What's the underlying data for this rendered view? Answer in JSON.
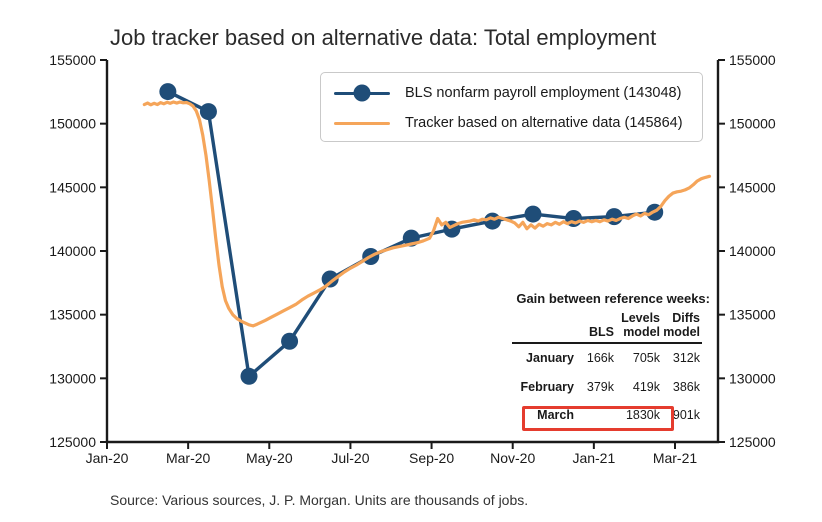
{
  "title": "Job tracker based on alternative data: Total employment",
  "source_note": "Source: Various sources, J. P. Morgan. Units are thousands of jobs.",
  "colors": {
    "bls_series": "#1f4d78",
    "tracker_series": "#f5a55a",
    "axis": "#1a1a1a",
    "highlight_box": "#e53c2e",
    "legend_border": "#c9c9c9"
  },
  "chart_data": {
    "type": "line",
    "title": "Job tracker based on alternative data: Total employment",
    "xlabel": "",
    "ylabel": "",
    "units": "thousands of jobs",
    "grid": false,
    "legend_position": "upper center",
    "x_axis": {
      "unit": "months since Jan-2020 (0 = Jan-20)",
      "range": [
        0,
        15.06
      ],
      "ticks": [
        0,
        2,
        4,
        6,
        8,
        10,
        12,
        14
      ],
      "labels": [
        "Jan-20",
        "Mar-20",
        "May-20",
        "Jul-20",
        "Sep-20",
        "Nov-20",
        "Jan-21",
        "Mar-21"
      ]
    },
    "y_axis": {
      "range": [
        125000,
        155000
      ],
      "ticks": [
        125000,
        130000,
        135000,
        140000,
        145000,
        150000,
        155000
      ],
      "mirrored_right": true
    },
    "series": [
      {
        "name": "BLS nonfarm payroll employment (143048)",
        "color": "#1f4d78",
        "marker": "circle",
        "marker_radius": 8.5,
        "width": 3.4,
        "x": [
          1.5,
          2.5,
          3.5,
          4.5,
          5.5,
          6.5,
          7.5,
          8.5,
          9.5,
          10.5,
          11.5,
          12.5,
          13.5
        ],
        "y": [
          152520,
          150950,
          130160,
          132910,
          137800,
          139570,
          141010,
          141720,
          142350,
          142900,
          142550,
          142700,
          143048
        ]
      },
      {
        "name": "Tracker based on alternative data (145864)",
        "color": "#f5a55a",
        "marker": "none",
        "width": 3.2,
        "x": [
          0.92,
          1.0,
          1.08,
          1.16,
          1.24,
          1.32,
          1.4,
          1.48,
          1.56,
          1.64,
          1.72,
          1.8,
          1.88,
          1.96,
          2.04,
          2.12,
          2.2,
          2.28,
          2.36,
          2.44,
          2.52,
          2.6,
          2.68,
          2.76,
          2.84,
          2.92,
          3.0,
          3.1,
          3.2,
          3.3,
          3.4,
          3.5,
          3.6,
          3.7,
          3.8,
          3.9,
          4.05,
          4.2,
          4.35,
          4.5,
          4.65,
          4.8,
          4.95,
          5.1,
          5.25,
          5.4,
          5.55,
          5.7,
          5.85,
          6.0,
          6.15,
          6.3,
          6.45,
          6.6,
          6.75,
          6.9,
          7.05,
          7.2,
          7.35,
          7.5,
          7.65,
          7.8,
          7.95,
          8.05,
          8.15,
          8.25,
          8.35,
          8.45,
          8.55,
          8.65,
          8.75,
          8.85,
          8.95,
          9.05,
          9.15,
          9.25,
          9.35,
          9.45,
          9.55,
          9.65,
          9.75,
          9.85,
          9.95,
          10.05,
          10.15,
          10.25,
          10.35,
          10.45,
          10.55,
          10.65,
          10.75,
          10.85,
          10.95,
          11.05,
          11.15,
          11.25,
          11.35,
          11.45,
          11.55,
          11.65,
          11.75,
          11.85,
          11.95,
          12.05,
          12.15,
          12.25,
          12.35,
          12.45,
          12.55,
          12.65,
          12.75,
          12.85,
          12.95,
          13.05,
          13.15,
          13.25,
          13.35,
          13.45,
          13.55,
          13.65,
          13.75,
          13.85,
          13.95,
          14.05,
          14.15,
          14.25,
          14.35,
          14.45,
          14.55,
          14.65,
          14.75,
          14.85
        ],
        "y": [
          151500,
          151620,
          151480,
          151600,
          151500,
          151650,
          151560,
          151680,
          151600,
          151700,
          151620,
          151700,
          151640,
          151660,
          151560,
          151380,
          151000,
          150300,
          149100,
          147500,
          145500,
          143300,
          141000,
          138900,
          137200,
          136100,
          135500,
          135000,
          134700,
          134500,
          134350,
          134200,
          134120,
          134250,
          134400,
          134550,
          134800,
          135050,
          135300,
          135550,
          135800,
          136150,
          136450,
          136700,
          136950,
          137250,
          137650,
          138000,
          138350,
          138650,
          138900,
          139200,
          139500,
          139750,
          139950,
          140100,
          140250,
          140350,
          140450,
          140550,
          140650,
          140800,
          141000,
          141600,
          142550,
          142050,
          142250,
          141850,
          142000,
          142150,
          142250,
          142300,
          142350,
          142450,
          142350,
          142500,
          142450,
          142600,
          142500,
          142650,
          142550,
          142450,
          142350,
          142200,
          141900,
          142250,
          141750,
          142050,
          141800,
          142100,
          141950,
          142150,
          142050,
          142250,
          142100,
          142300,
          142150,
          142300,
          142200,
          142350,
          142250,
          142400,
          142300,
          142400,
          142300,
          142450,
          142350,
          142500,
          142400,
          142550,
          142650,
          142550,
          142750,
          142900,
          142750,
          142950,
          142850,
          143050,
          143200,
          143500,
          143950,
          144300,
          144550,
          144650,
          144700,
          144800,
          144950,
          145200,
          145500,
          145680,
          145780,
          145864
        ]
      }
    ]
  },
  "gain_table": {
    "title": "Gain between reference weeks:",
    "column_headers": [
      {
        "line1": "",
        "line2": "BLS"
      },
      {
        "line1": "Levels",
        "line2": "model"
      },
      {
        "line1": "Diffs",
        "line2": "model"
      }
    ],
    "rows": [
      {
        "label": "January",
        "values": [
          "166k",
          "705k",
          "312k"
        ],
        "highlighted": false
      },
      {
        "label": "February",
        "values": [
          "379k",
          "419k",
          "386k"
        ],
        "highlighted": false
      },
      {
        "label": "March",
        "values": [
          "",
          "1830k",
          "901k"
        ],
        "highlighted": true
      }
    ]
  }
}
